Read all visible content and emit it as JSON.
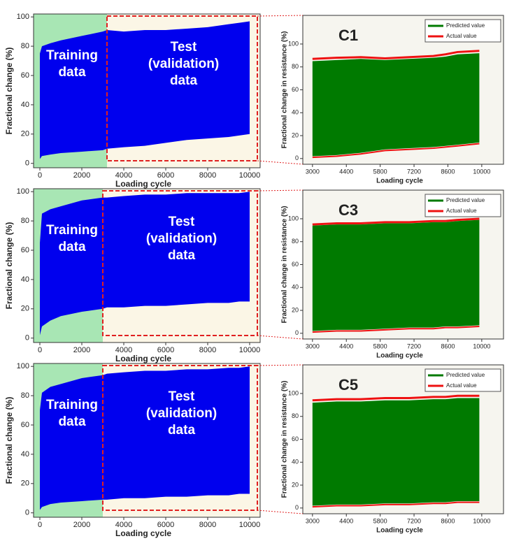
{
  "chart_data": [
    {
      "type": "band",
      "ylabel": "Fractional change (%)",
      "xlabel": "Loading cycle",
      "xlim": [
        -300,
        10500
      ],
      "ylim": [
        -3,
        102
      ],
      "xticks": [
        0,
        2000,
        4000,
        6000,
        8000,
        10000
      ],
      "yticks": [
        0,
        20,
        40,
        60,
        80,
        100
      ],
      "split_x": 3200,
      "color": "#0000ee",
      "training_label": [
        "Training",
        "data"
      ],
      "test_label": [
        "Test",
        "(validation)",
        "data"
      ],
      "x": [
        0,
        100,
        500,
        1000,
        2000,
        3000,
        3200,
        4000,
        5000,
        6000,
        7000,
        8000,
        9000,
        9500,
        10000
      ],
      "upper": [
        75,
        80,
        82,
        84,
        87,
        90,
        91,
        90,
        91,
        91,
        92,
        93,
        95,
        96,
        97
      ],
      "lower": [
        3,
        5,
        6,
        7,
        8,
        9,
        10,
        11,
        12,
        14,
        16,
        17,
        18,
        19,
        20
      ]
    },
    {
      "type": "panel",
      "panel_label": "C1",
      "ylabel": "Fractional change in resistance (%)",
      "xlabel": "Loading cycle",
      "xlim": [
        2600,
        10900
      ],
      "ylim": [
        -5,
        125
      ],
      "xticks": [
        3000,
        4400,
        5800,
        7200,
        8600,
        10000
      ],
      "yticks": [
        0,
        20,
        40,
        60,
        80,
        100
      ],
      "x": [
        3000,
        4000,
        5000,
        6000,
        7000,
        8000,
        8500,
        9000,
        9900
      ],
      "series": [
        {
          "name": "Predicted value",
          "color": "#007a00",
          "upper": [
            85,
            86,
            87,
            86,
            87,
            88,
            89,
            91,
            92
          ],
          "lower": [
            2,
            3,
            5,
            8,
            9,
            10,
            11,
            12,
            14
          ]
        },
        {
          "name": "Actual value",
          "color": "#ee1111",
          "upper": [
            87,
            88,
            88.5,
            87.5,
            88.5,
            89.5,
            91,
            93,
            94
          ],
          "lower": [
            1,
            2,
            4,
            7,
            8,
            9,
            10,
            11,
            13
          ]
        }
      ]
    },
    {
      "type": "band",
      "ylabel": "Fractional change (%)",
      "xlabel": "Loading cycle",
      "xlim": [
        -300,
        10500
      ],
      "ylim": [
        -3,
        102
      ],
      "xticks": [
        0,
        2000,
        4000,
        6000,
        8000,
        10000
      ],
      "yticks": [
        0,
        20,
        40,
        60,
        80,
        100
      ],
      "split_x": 3000,
      "color": "#0000ee",
      "training_label": [
        "Training",
        "data"
      ],
      "test_label": [
        "Test",
        "(validation)",
        "data"
      ],
      "x": [
        0,
        100,
        500,
        1000,
        2000,
        3000,
        3200,
        4000,
        5000,
        6000,
        7000,
        8000,
        9000,
        9500,
        10000
      ],
      "upper": [
        65,
        85,
        88,
        90,
        94,
        96,
        96,
        97,
        98,
        98,
        99,
        99,
        99,
        99,
        100
      ],
      "lower": [
        2,
        8,
        12,
        15,
        18,
        20,
        21,
        21,
        22,
        22,
        23,
        24,
        24,
        25,
        25
      ]
    },
    {
      "type": "panel",
      "panel_label": "C3",
      "ylabel": "Fractional change in resistance (%)",
      "xlabel": "Loading cycle",
      "xlim": [
        2600,
        10900
      ],
      "ylim": [
        -5,
        125
      ],
      "xticks": [
        3000,
        4400,
        5800,
        7200,
        8600,
        10000
      ],
      "yticks": [
        0,
        20,
        40,
        60,
        80,
        100
      ],
      "x": [
        3000,
        4000,
        5000,
        6000,
        7000,
        8000,
        8500,
        9000,
        9900
      ],
      "series": [
        {
          "name": "Predicted value",
          "color": "#007a00",
          "upper": [
            94,
            95,
            95,
            96,
            96,
            97,
            97,
            98,
            99
          ],
          "lower": [
            2,
            3,
            3,
            4,
            5,
            5,
            6,
            6,
            7
          ]
        },
        {
          "name": "Actual value",
          "color": "#ee1111",
          "upper": [
            95,
            96,
            96,
            97,
            97,
            98,
            98,
            99,
            100
          ],
          "lower": [
            1,
            2,
            2,
            3,
            4,
            4,
            5,
            5,
            6
          ]
        }
      ]
    },
    {
      "type": "band",
      "ylabel": "Fractional change (%)",
      "xlabel": "Loading cycle",
      "xlim": [
        -300,
        10500
      ],
      "ylim": [
        -3,
        102
      ],
      "xticks": [
        0,
        2000,
        4000,
        6000,
        8000,
        10000
      ],
      "yticks": [
        0,
        20,
        40,
        60,
        80,
        100
      ],
      "split_x": 3000,
      "color": "#0000ee",
      "training_label": [
        "Training",
        "data"
      ],
      "test_label": [
        "Test",
        "(validation)",
        "data"
      ],
      "x": [
        0,
        100,
        500,
        1000,
        2000,
        3000,
        3200,
        4000,
        5000,
        6000,
        7000,
        8000,
        9000,
        9500,
        10000
      ],
      "upper": [
        70,
        82,
        86,
        88,
        92,
        94,
        95,
        96,
        97,
        97,
        98,
        98,
        99,
        99,
        100
      ],
      "lower": [
        2,
        4,
        6,
        7,
        8,
        9,
        9,
        10,
        10,
        11,
        11,
        12,
        12,
        13,
        13
      ]
    },
    {
      "type": "panel",
      "panel_label": "C5",
      "ylabel": "Fractional change in resistance (%)",
      "xlabel": "Loading cycle",
      "xlim": [
        2600,
        10900
      ],
      "ylim": [
        -5,
        125
      ],
      "xticks": [
        3000,
        4400,
        5800,
        7200,
        8600,
        10000
      ],
      "yticks": [
        0,
        20,
        40,
        60,
        80,
        100
      ],
      "x": [
        3000,
        4000,
        5000,
        6000,
        7000,
        8000,
        8500,
        9000,
        9900
      ],
      "series": [
        {
          "name": "Predicted value",
          "color": "#007a00",
          "upper": [
            92,
            93,
            93,
            94,
            94,
            95,
            95,
            96,
            96
          ],
          "lower": [
            2,
            3,
            3,
            4,
            4,
            5,
            5,
            6,
            6
          ]
        },
        {
          "name": "Actual value",
          "color": "#ee1111",
          "upper": [
            94,
            95,
            95,
            96,
            96,
            97,
            97,
            98,
            98
          ],
          "lower": [
            1,
            2,
            2,
            3,
            3,
            4,
            4,
            5,
            5
          ]
        }
      ]
    }
  ]
}
